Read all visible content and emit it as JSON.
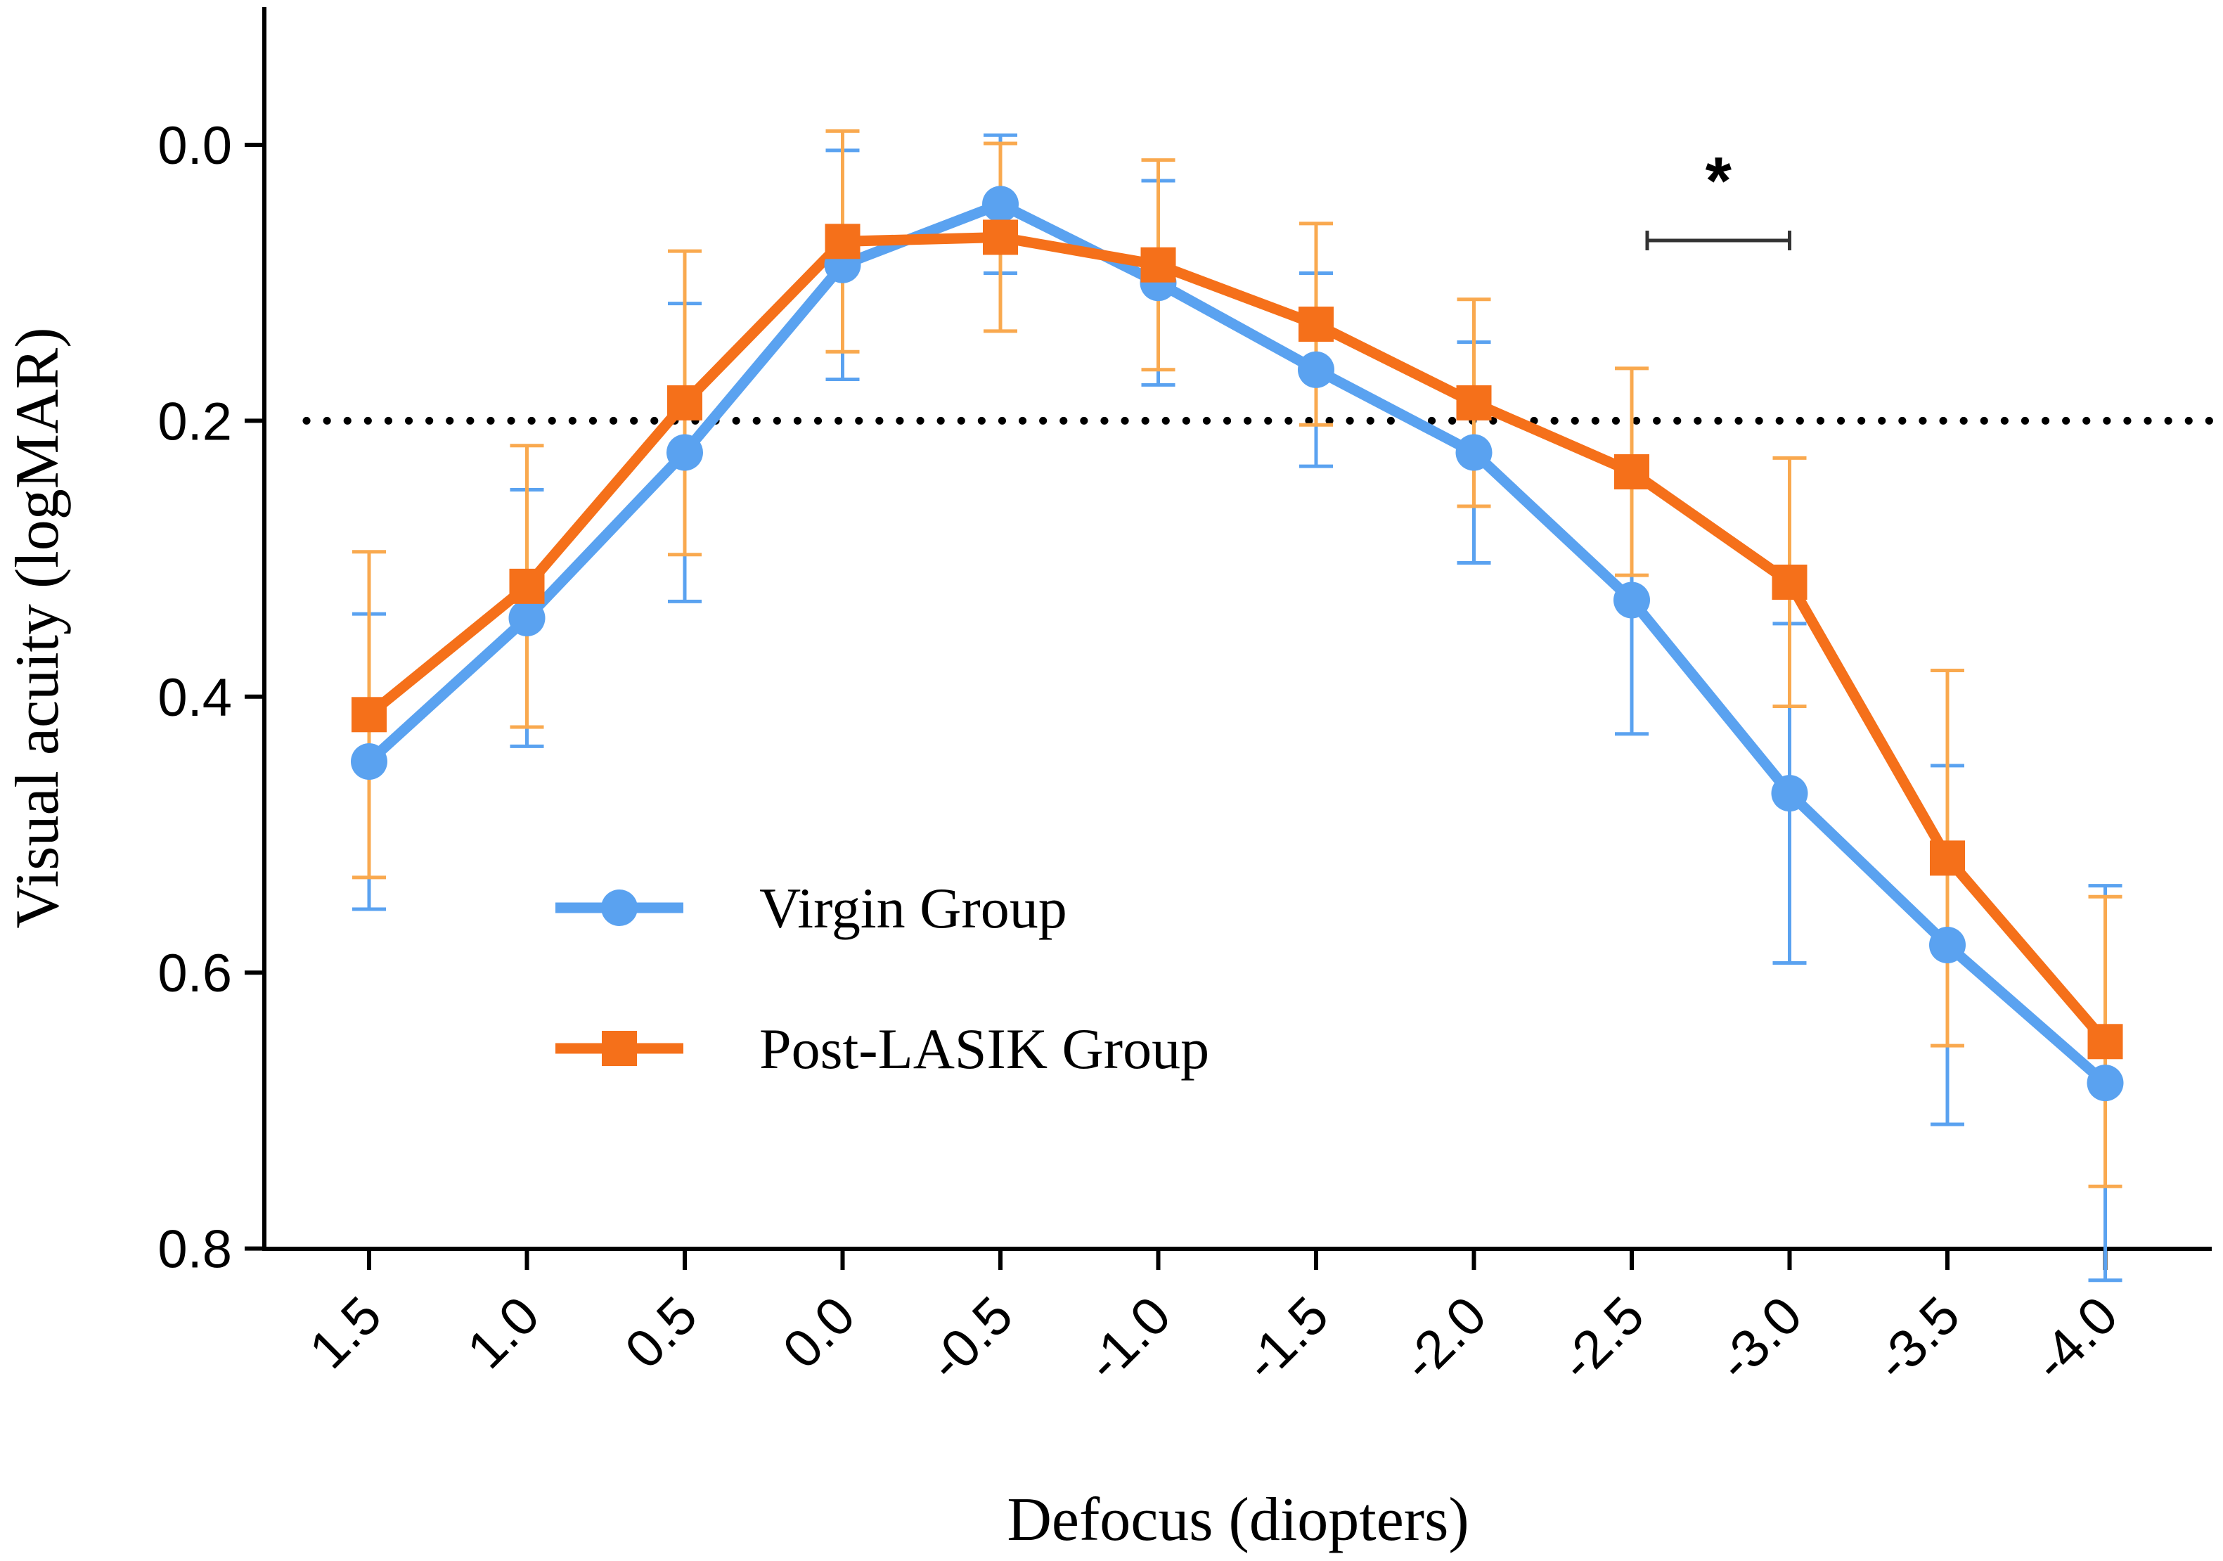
{
  "chart_data": {
    "type": "line",
    "title": "",
    "xlabel": "Defocus (diopters)",
    "ylabel": "Visual acuity (logMAR)",
    "x": [
      1.5,
      1.0,
      0.5,
      0.0,
      -0.5,
      -1.0,
      -1.5,
      -2.0,
      -2.5,
      -3.0,
      -3.5,
      -4.0
    ],
    "x_tick_labels": [
      "1.5",
      "1.0",
      "0.5",
      "0.0",
      "-0.5",
      "-1.0",
      "-1.5",
      "-2.0",
      "-2.5",
      "-3.0",
      "-3.5",
      "-4.0"
    ],
    "y_tick_values": [
      0.0,
      0.2,
      0.4,
      0.6,
      0.8
    ],
    "y_tick_labels": [
      "0.0",
      "0.2",
      "0.4",
      "0.6",
      "0.8"
    ],
    "ylim": [
      -0.1,
      0.8
    ],
    "y_inverted": true,
    "reference_line": {
      "y": 0.2,
      "style": "dotted"
    },
    "series": [
      {
        "name": "Virgin Group",
        "color": "#5AA2F0",
        "marker": "circle",
        "values": [
          0.447,
          0.343,
          0.223,
          0.087,
          0.043,
          0.1,
          0.163,
          0.223,
          0.33,
          0.47,
          0.58,
          0.68
        ],
        "error": [
          0.107,
          0.093,
          0.108,
          0.083,
          0.05,
          0.074,
          0.07,
          0.08,
          0.097,
          0.123,
          0.13,
          0.143
        ]
      },
      {
        "name": "Post-LASIK Group",
        "color": "#F5701A",
        "error_color": "#F9A94F",
        "marker": "square",
        "values": [
          0.413,
          0.32,
          0.187,
          0.07,
          0.067,
          0.087,
          0.13,
          0.187,
          0.237,
          0.317,
          0.517,
          0.65
        ],
        "error": [
          0.118,
          0.102,
          0.11,
          0.08,
          0.068,
          0.076,
          0.073,
          0.075,
          0.075,
          0.09,
          0.136,
          0.105
        ]
      }
    ],
    "significance": {
      "label": "*",
      "from_x": -2.5,
      "to_x": -3.0
    },
    "legend": {
      "position": "bottom-left",
      "entries": [
        "Virgin Group",
        "Post-LASIK Group"
      ]
    }
  }
}
